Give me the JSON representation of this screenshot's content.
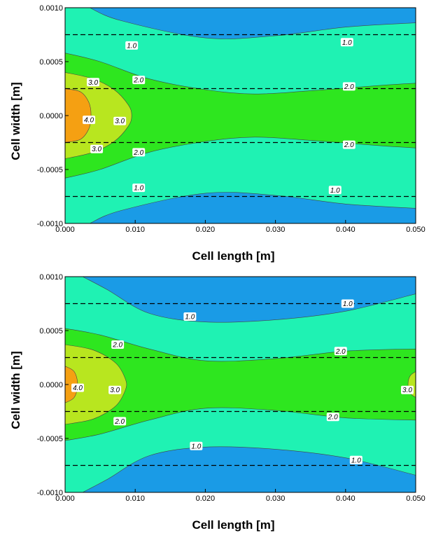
{
  "colors": {
    "blue": "#1a9be6",
    "cyan": "#1ff2b3",
    "green": "#2ee61f",
    "lime": "#b8e61f",
    "orange": "#f5a012",
    "dash": "#000000",
    "line": "#444444"
  },
  "chart_data": [
    {
      "type": "contour",
      "xlabel": "Cell length [m]",
      "ylabel": "Cell width [m]",
      "xlim": [
        0,
        0.05
      ],
      "ylim": [
        -0.001,
        0.001
      ],
      "xticks": [
        "0.000",
        "0.010",
        "0.020",
        "0.030",
        "0.040",
        "0.050"
      ],
      "yticks": [
        "-0.0010",
        "-0.0005",
        "0.0000",
        "0.0005",
        "0.0010"
      ],
      "contour_levels": [
        1.0,
        2.0,
        3.0,
        4.0
      ],
      "dashed_lines_y": [
        0.00075,
        0.00025,
        -0.00025,
        -0.00075
      ],
      "contours": [
        {
          "level": 1.0,
          "points": [
            [
              0.0035,
              0.001
            ],
            [
              0.008,
              0.00088
            ],
            [
              0.02,
              0.00072
            ],
            [
              0.03,
              0.00074
            ],
            [
              0.04,
              0.00082
            ],
            [
              0.05,
              0.00086
            ]
          ]
        },
        {
          "level": 2.0,
          "points": [
            [
              0,
              0.00058
            ],
            [
              0.005,
              0.0005
            ],
            [
              0.012,
              0.00034
            ],
            [
              0.02,
              0.00024
            ],
            [
              0.027,
              0.0002
            ],
            [
              0.035,
              0.00023
            ],
            [
              0.045,
              0.00028
            ],
            [
              0.05,
              0.0003
            ]
          ]
        },
        {
          "level": 3.0,
          "points": [
            [
              0,
              0.0004
            ],
            [
              0.004,
              0.00034
            ],
            [
              0.007,
              0.00024
            ],
            [
              0.009,
              0.0001
            ],
            [
              0.0095,
              0
            ],
            [
              0.009,
              -0.0001
            ],
            [
              0.007,
              -0.00024
            ],
            [
              0.004,
              -0.00034
            ],
            [
              0,
              -0.0004
            ]
          ]
        },
        {
          "level": 4.0,
          "points": [
            [
              0,
              0.00025
            ],
            [
              0.0022,
              0.00022
            ],
            [
              0.0034,
              0.00012
            ],
            [
              0.0037,
              0
            ],
            [
              0.0034,
              -0.00012
            ],
            [
              0.0022,
              -0.00022
            ],
            [
              0,
              -0.00025
            ]
          ]
        }
      ],
      "contour_labels": [
        {
          "text": "1.0",
          "x": 0.0095,
          "y": 0.00065
        },
        {
          "text": "1.0",
          "x": 0.0402,
          "y": 0.00068
        },
        {
          "text": "3.0",
          "x": 0.004,
          "y": 0.00031
        },
        {
          "text": "2.0",
          "x": 0.0105,
          "y": 0.00033
        },
        {
          "text": "2.0",
          "x": 0.0405,
          "y": 0.00027
        },
        {
          "text": "4.0",
          "x": 0.0034,
          "y": -4e-05
        },
        {
          "text": "3.0",
          "x": 0.0078,
          "y": -5e-05
        },
        {
          "text": "3.0",
          "x": 0.0045,
          "y": -0.00031
        },
        {
          "text": "2.0",
          "x": 0.0105,
          "y": -0.00034
        },
        {
          "text": "2.0",
          "x": 0.0405,
          "y": -0.00027
        },
        {
          "text": "1.0",
          "x": 0.0105,
          "y": -0.00067
        },
        {
          "text": "1.0",
          "x": 0.0385,
          "y": -0.00069
        }
      ]
    },
    {
      "type": "contour",
      "xlabel": "Cell length [m]",
      "ylabel": "Cell width [m]",
      "xlim": [
        0,
        0.05
      ],
      "ylim": [
        -0.001,
        0.001
      ],
      "xticks": [
        "0.000",
        "0.010",
        "0.020",
        "0.030",
        "0.040",
        "0.050"
      ],
      "yticks": [
        "-0.0010",
        "-0.0005",
        "0.0000",
        "0.0005",
        "0.0010"
      ],
      "contour_levels": [
        1.0,
        2.0,
        3.0,
        4.0
      ],
      "dashed_lines_y": [
        0.00075,
        0.00025,
        -0.00075,
        -0.00025
      ],
      "contours": [
        {
          "level": 1.0,
          "points": [
            [
              0.0025,
              0.001
            ],
            [
              0.006,
              0.00088
            ],
            [
              0.012,
              0.00066
            ],
            [
              0.02,
              0.00058
            ],
            [
              0.03,
              0.0006
            ],
            [
              0.04,
              0.00068
            ],
            [
              0.05,
              0.00084
            ]
          ]
        },
        {
          "level": 2.0,
          "points": [
            [
              0,
              0.00052
            ],
            [
              0.005,
              0.00046
            ],
            [
              0.012,
              0.00033
            ],
            [
              0.02,
              0.00022
            ],
            [
              0.03,
              0.00024
            ],
            [
              0.04,
              0.00031
            ],
            [
              0.05,
              0.00033
            ]
          ]
        },
        {
          "level": 3.0,
          "points": [
            [
              0,
              0.00037
            ],
            [
              0.004,
              0.00032
            ],
            [
              0.0072,
              0.0002
            ],
            [
              0.0086,
              5e-05
            ],
            [
              0.0086,
              -5e-05
            ],
            [
              0.0072,
              -0.0002
            ],
            [
              0.004,
              -0.00032
            ],
            [
              0,
              -0.00037
            ]
          ]
        },
        {
          "level": 4.0,
          "points": [
            [
              0,
              0.00017
            ],
            [
              0.0013,
              0.00012
            ],
            [
              0.0018,
              0
            ],
            [
              0.0013,
              -0.00012
            ],
            [
              0,
              -0.00017
            ]
          ]
        }
      ],
      "right_lime_bulge": [
        [
          0.05,
          0.00012
        ],
        [
          0.0492,
          8e-05
        ],
        [
          0.0489,
          0
        ],
        [
          0.0492,
          -8e-05
        ],
        [
          0.05,
          -0.00012
        ]
      ],
      "contour_labels": [
        {
          "text": "1.0",
          "x": 0.0403,
          "y": 0.00075
        },
        {
          "text": "1.0",
          "x": 0.0178,
          "y": 0.00063
        },
        {
          "text": "2.0",
          "x": 0.0075,
          "y": 0.00037
        },
        {
          "text": "2.0",
          "x": 0.0393,
          "y": 0.00031
        },
        {
          "text": "4.0",
          "x": 0.0018,
          "y": -3e-05
        },
        {
          "text": "3.0",
          "x": 0.0071,
          "y": -5e-05
        },
        {
          "text": "3.0",
          "x": 0.0488,
          "y": -5e-05
        },
        {
          "text": "2.0",
          "x": 0.0078,
          "y": -0.00034
        },
        {
          "text": "2.0",
          "x": 0.0382,
          "y": -0.0003
        },
        {
          "text": "1.0",
          "x": 0.0187,
          "y": -0.00057
        },
        {
          "text": "1.0",
          "x": 0.0415,
          "y": -0.0007
        }
      ]
    }
  ]
}
